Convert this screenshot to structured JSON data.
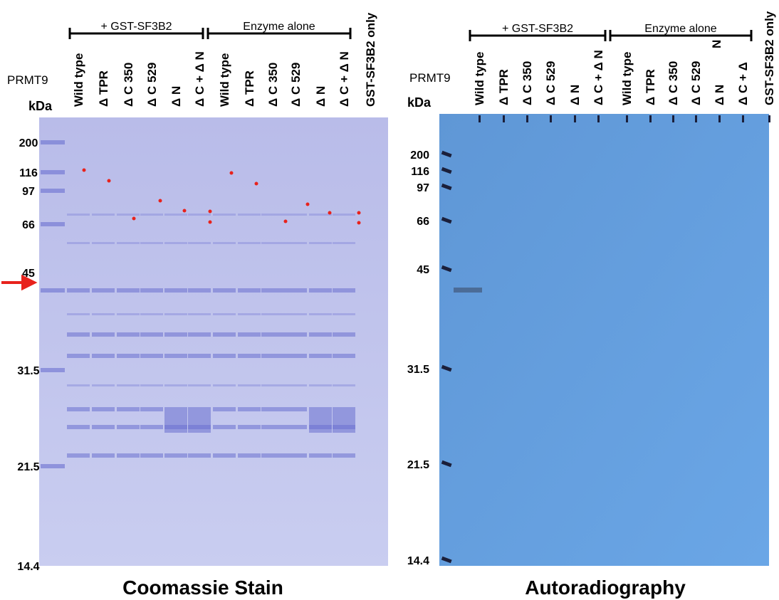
{
  "panels": [
    {
      "title": "Coomassie Stain",
      "protein_label": "PRMT9",
      "unit_label": "kDa",
      "groups": [
        "+ GST-SF3B2",
        "Enzyme alone"
      ],
      "lanes": [
        "Wild type",
        "Δ TPR",
        "Δ C 350",
        "Δ C 529",
        "Δ N",
        "Δ C + Δ N",
        "Wild type",
        "Δ TPR",
        "Δ C 350",
        "Δ C 529",
        "Δ N",
        "Δ C + Δ N",
        "GST-SF3B2 only"
      ],
      "markers": [
        "200",
        "116",
        "97",
        "66",
        "45",
        "31.5",
        "21.5",
        "14.4"
      ]
    },
    {
      "title": "Autoradiography",
      "protein_label": "PRMT9",
      "unit_label": "kDa",
      "groups": [
        "+ GST-SF3B2",
        "Enzyme alone"
      ],
      "lanes": [
        "Wild type",
        "Δ TPR",
        "Δ C 350",
        "Δ C 529",
        "Δ N",
        "Δ C + Δ N",
        "Wild type",
        "Δ TPR",
        "Δ C 350",
        "Δ C 529",
        "Δ N",
        "Δ C + Δ",
        "GST-SF3B2 only"
      ],
      "extra_label": "N",
      "markers": [
        "200",
        "116",
        "97",
        "66",
        "45",
        "31.5",
        "21.5",
        "14.4"
      ]
    }
  ]
}
